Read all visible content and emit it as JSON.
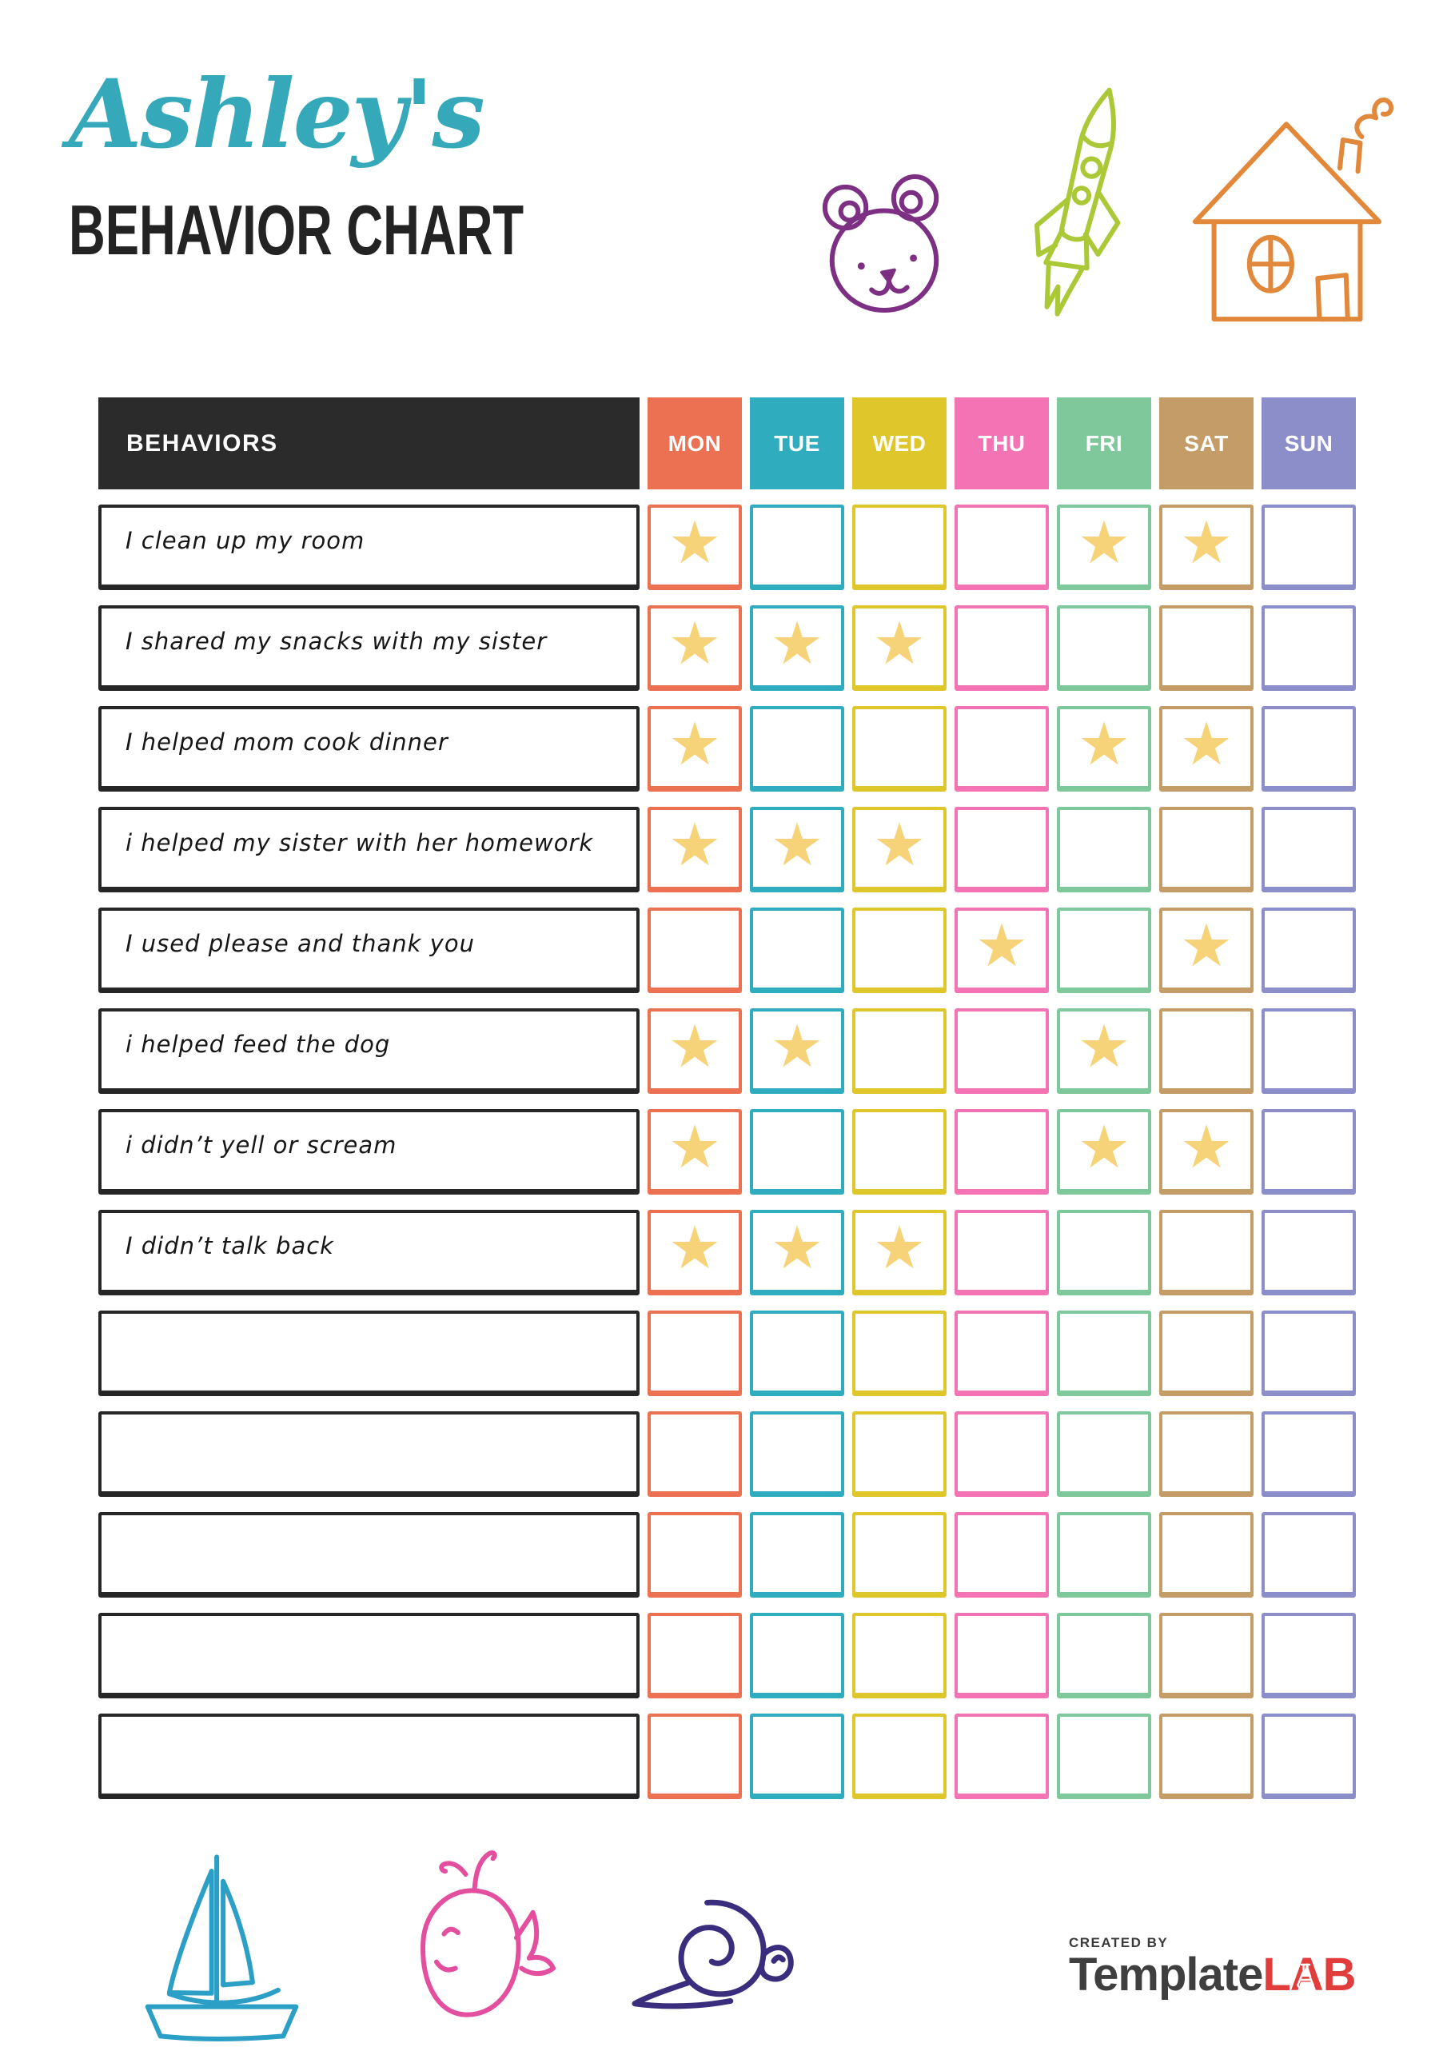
{
  "header": {
    "owner_name": "Ashley's",
    "title": "BEHAVIOR CHART"
  },
  "decorations": {
    "top_icons": [
      "bear-doodle",
      "rocket-doodle",
      "house-doodle"
    ],
    "bottom_icons": [
      "sailboat-doodle",
      "whale-doodle",
      "snail-doodle"
    ],
    "colors": {
      "bear": "#7d3083",
      "rocket": "#abc837",
      "house": "#e2883b",
      "sailboat": "#2b9fc6",
      "whale": "#e34f9e",
      "snail": "#3a2d7d"
    }
  },
  "table": {
    "behaviors_header": "BEHAVIORS",
    "header_bg": "#2b2b2b",
    "star_glyph": "★",
    "star_color": "#f6d378",
    "label_border_color": "#262626",
    "days": [
      {
        "label": "MON",
        "color": "#ec7052"
      },
      {
        "label": "TUE",
        "color": "#2facbe"
      },
      {
        "label": "WED",
        "color": "#dfc72b"
      },
      {
        "label": "THU",
        "color": "#f373b5"
      },
      {
        "label": "FRI",
        "color": "#7fc89b"
      },
      {
        "label": "SAT",
        "color": "#c49c68"
      },
      {
        "label": "SUN",
        "color": "#8b8ec8"
      }
    ],
    "rows": [
      {
        "label": "I clean up my room",
        "stars": [
          "MON",
          "FRI",
          "SAT"
        ]
      },
      {
        "label": "I shared my snacks with my sister",
        "stars": [
          "MON",
          "TUE",
          "WED"
        ]
      },
      {
        "label": "I helped mom cook dinner",
        "stars": [
          "MON",
          "FRI",
          "SAT"
        ]
      },
      {
        "label": "i helped my sister with her homework",
        "stars": [
          "MON",
          "TUE",
          "WED"
        ]
      },
      {
        "label": "I used please and thank you",
        "stars": [
          "THU",
          "SAT"
        ]
      },
      {
        "label": "i helped feed the dog",
        "stars": [
          "MON",
          "TUE",
          "FRI"
        ]
      },
      {
        "label": "i didn’t yell or scream",
        "stars": [
          "MON",
          "FRI",
          "SAT"
        ]
      },
      {
        "label": "I didn’t talk back",
        "stars": [
          "MON",
          "TUE",
          "WED"
        ]
      },
      {
        "label": "",
        "stars": []
      },
      {
        "label": "",
        "stars": []
      },
      {
        "label": "",
        "stars": []
      },
      {
        "label": "",
        "stars": []
      },
      {
        "label": "",
        "stars": []
      }
    ]
  },
  "footer": {
    "created_by": "CREATED BY",
    "brand_first": "Template",
    "brand_last": "LAB",
    "brand_accent_color": "#e23d3d"
  }
}
